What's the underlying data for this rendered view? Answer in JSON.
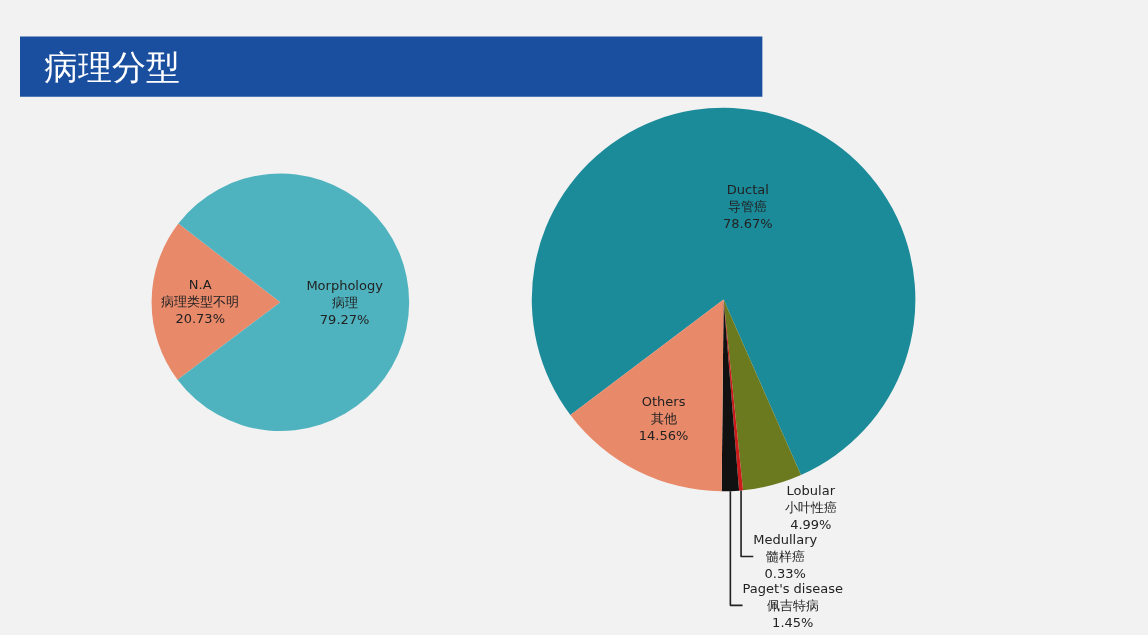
{
  "chart_data": [
    {
      "type": "pie",
      "title": "病理分型",
      "categories": [
        "N.A\n病理类型不明",
        "Morphology\n病理"
      ],
      "values": [
        20.73,
        79.27
      ],
      "value_labels": [
        "20.73%",
        "79.27%"
      ],
      "colors": [
        "#e8896a",
        "#4fb3bf"
      ],
      "legend": false
    },
    {
      "type": "pie",
      "categories": [
        "Ductal\n导管癌",
        "Lobular\n小叶性癌",
        "Medullary\n髓样癌",
        "Paget's disease\n佩吉特病",
        "Others\n其他"
      ],
      "values": [
        78.67,
        4.99,
        0.33,
        1.45,
        14.56
      ],
      "value_labels": [
        "78.67%",
        "4.99%",
        "0.33%",
        "1.45%",
        "14.56%"
      ],
      "colors": [
        "#1b8a99",
        "#6b7a1e",
        "#cc1a1a",
        "#111111",
        "#e8896a"
      ],
      "legend": false
    }
  ]
}
